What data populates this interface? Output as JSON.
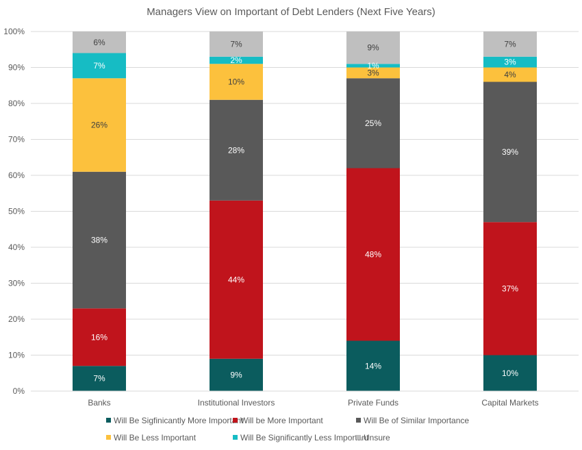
{
  "chart_data": {
    "type": "bar",
    "stacked": true,
    "orientation": "vertical",
    "title": "Managers View on Important of Debt Lenders (Next Five Years)",
    "xlabel": "",
    "ylabel": "",
    "ylim": [
      0,
      100
    ],
    "y_ticks": [
      "0%",
      "10%",
      "20%",
      "30%",
      "40%",
      "50%",
      "60%",
      "70%",
      "80%",
      "90%",
      "100%"
    ],
    "grid": true,
    "legend_position": "bottom",
    "categories": [
      "Banks",
      "Institutional Investors",
      "Private Funds",
      "Capital Markets"
    ],
    "series": [
      {
        "name": "Will Be Sigfinicantly More Important",
        "color": "#0b5c5e",
        "label_color": "#ffffff",
        "values": [
          7,
          9,
          14,
          10
        ],
        "labels": [
          "7%",
          "9%",
          "14%",
          "10%"
        ]
      },
      {
        "name": "Will be More Important",
        "color": "#c0141c",
        "label_color": "#ffffff",
        "values": [
          16,
          44,
          48,
          37
        ],
        "labels": [
          "16%",
          "44%",
          "48%",
          "37%"
        ]
      },
      {
        "name": "Will Be of Similar Importance",
        "color": "#595959",
        "label_color": "#ffffff",
        "values": [
          38,
          28,
          25,
          39
        ],
        "labels": [
          "38%",
          "28%",
          "25%",
          "39%"
        ]
      },
      {
        "name": "Will Be Less Important",
        "color": "#fcc13d",
        "label_color": "#404040",
        "values": [
          26,
          10,
          3,
          4
        ],
        "labels": [
          "26%",
          "10%",
          "3%",
          "4%"
        ]
      },
      {
        "name": "Will Be Significantly Less Important",
        "color": "#16bcc4",
        "label_color": "#ffffff",
        "values": [
          7,
          2,
          1,
          3
        ],
        "labels": [
          "7%",
          "2%",
          "1%",
          "3%"
        ]
      },
      {
        "name": "Unsure",
        "color": "#bfbfbf",
        "label_color": "#404040",
        "values": [
          6,
          7,
          9,
          7
        ],
        "labels": [
          "6%",
          "7%",
          "9%",
          "7%"
        ]
      }
    ]
  }
}
